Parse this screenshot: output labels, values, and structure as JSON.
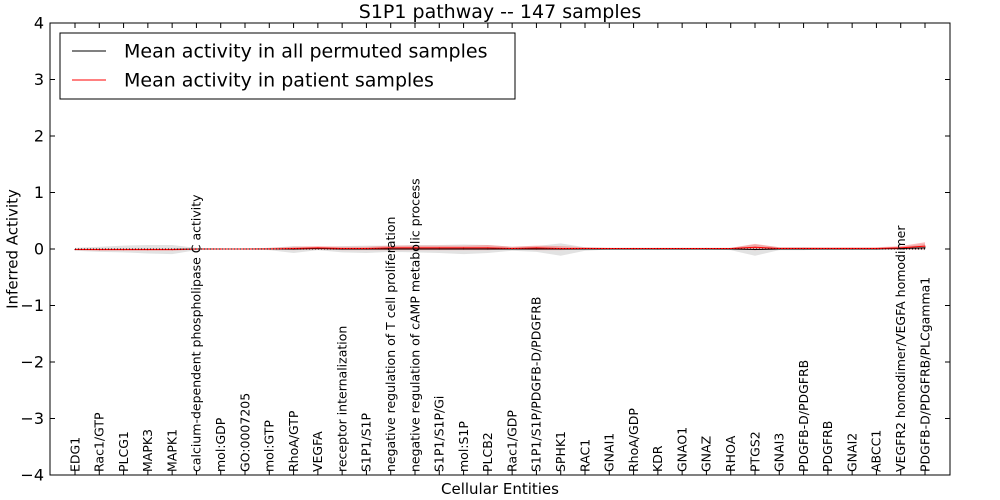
{
  "chart_data": {
    "type": "line",
    "title": "S1P1 pathway -- 147 samples",
    "xlabel": "Cellular Entities",
    "ylabel": "Inferred Activity",
    "ylim": [
      -4,
      4
    ],
    "yticks": [
      4,
      3,
      2,
      1,
      0,
      -1,
      -2,
      -3,
      -4
    ],
    "ytick_labels": [
      "4",
      "3",
      "2",
      "1",
      "0",
      "−1",
      "−2",
      "−3",
      "−4"
    ],
    "legend_position": "top-left",
    "categories": [
      "EDG1",
      "Rac1/GTP",
      "PLCG1",
      "MAPK3",
      "MAPK1",
      "calcium-dependent phospholipase C activity",
      "mol:GDP",
      "GO:0007205",
      "mol:GTP",
      "RhoA/GTP",
      "VEGFA",
      "receptor internalization",
      "S1P1/S1P",
      "negative regulation of T cell proliferation",
      "negative regulation of cAMP metabolic process",
      "S1P1/S1P/Gi",
      "mol:S1P",
      "PLCB2",
      "Rac1/GDP",
      "S1P1/S1P/PDGFB-D/PDGFRB",
      "SPHK1",
      "RAC1",
      "GNAI1",
      "RhoA/GDP",
      "KDR",
      "GNAO1",
      "GNAZ",
      "RHOA",
      "PTGS2",
      "GNAI3",
      "PDGFB-D/PDGFRB",
      "PDGFRB",
      "GNAI2",
      "ABCC1",
      "VEGFR2 homodimer/VEGFA homodimer",
      "PDGFB-D/PDGFRB/PLCgamma1"
    ],
    "series": [
      {
        "name": "Mean activity in all permuted samples",
        "color": "#000000",
        "values": [
          -0.01,
          -0.01,
          -0.01,
          -0.01,
          -0.01,
          0.0,
          0.0,
          0.0,
          0.0,
          0.0,
          0.01,
          0.0,
          0.0,
          0.0,
          0.0,
          0.0,
          0.0,
          0.0,
          0.0,
          0.0,
          0.0,
          0.0,
          0.0,
          0.0,
          0.0,
          0.0,
          0.0,
          0.0,
          -0.01,
          0.0,
          0.0,
          0.0,
          0.0,
          0.0,
          0.01,
          0.02
        ],
        "band_lower": [
          -0.03,
          -0.05,
          -0.06,
          -0.08,
          -0.09,
          -0.02,
          -0.01,
          -0.01,
          -0.02,
          -0.07,
          -0.02,
          -0.06,
          -0.07,
          -0.05,
          -0.06,
          -0.07,
          -0.09,
          -0.07,
          -0.03,
          -0.05,
          -0.12,
          -0.03,
          -0.01,
          -0.01,
          -0.01,
          -0.01,
          -0.01,
          -0.02,
          -0.12,
          -0.02,
          -0.02,
          -0.01,
          -0.01,
          -0.01,
          -0.01,
          -0.02
        ],
        "band_upper": [
          0.02,
          0.04,
          0.06,
          0.07,
          0.07,
          0.02,
          0.01,
          0.01,
          0.02,
          0.05,
          0.03,
          0.05,
          0.06,
          0.06,
          0.07,
          0.07,
          0.08,
          0.07,
          0.04,
          0.05,
          0.1,
          0.03,
          0.02,
          0.02,
          0.02,
          0.02,
          0.02,
          0.02,
          0.08,
          0.03,
          0.03,
          0.02,
          0.02,
          0.02,
          0.04,
          0.09
        ]
      },
      {
        "name": "Mean activity in patient samples",
        "color": "#ff0000",
        "values": [
          -0.01,
          -0.01,
          -0.01,
          -0.01,
          -0.01,
          0.0,
          0.0,
          0.0,
          0.0,
          0.01,
          0.02,
          0.01,
          0.01,
          0.02,
          0.02,
          0.02,
          0.02,
          0.02,
          0.01,
          0.02,
          0.01,
          0.01,
          0.01,
          0.01,
          0.01,
          0.01,
          0.01,
          0.01,
          0.03,
          0.01,
          0.01,
          0.01,
          0.01,
          0.01,
          0.02,
          0.05
        ],
        "band_lower": [
          -0.02,
          -0.03,
          -0.03,
          -0.03,
          -0.03,
          -0.01,
          -0.01,
          -0.01,
          -0.01,
          -0.02,
          -0.01,
          -0.02,
          -0.02,
          -0.02,
          -0.02,
          -0.02,
          -0.02,
          -0.02,
          -0.01,
          -0.02,
          -0.02,
          -0.01,
          -0.01,
          -0.01,
          -0.01,
          -0.01,
          -0.01,
          -0.01,
          -0.02,
          -0.01,
          -0.01,
          -0.01,
          -0.01,
          -0.01,
          -0.01,
          -0.01
        ],
        "band_upper": [
          0.01,
          0.01,
          0.01,
          0.01,
          0.01,
          0.01,
          0.01,
          0.01,
          0.02,
          0.04,
          0.05,
          0.04,
          0.04,
          0.06,
          0.06,
          0.06,
          0.06,
          0.07,
          0.04,
          0.06,
          0.05,
          0.03,
          0.02,
          0.02,
          0.02,
          0.02,
          0.02,
          0.02,
          0.09,
          0.03,
          0.03,
          0.03,
          0.03,
          0.03,
          0.05,
          0.12
        ]
      }
    ]
  }
}
